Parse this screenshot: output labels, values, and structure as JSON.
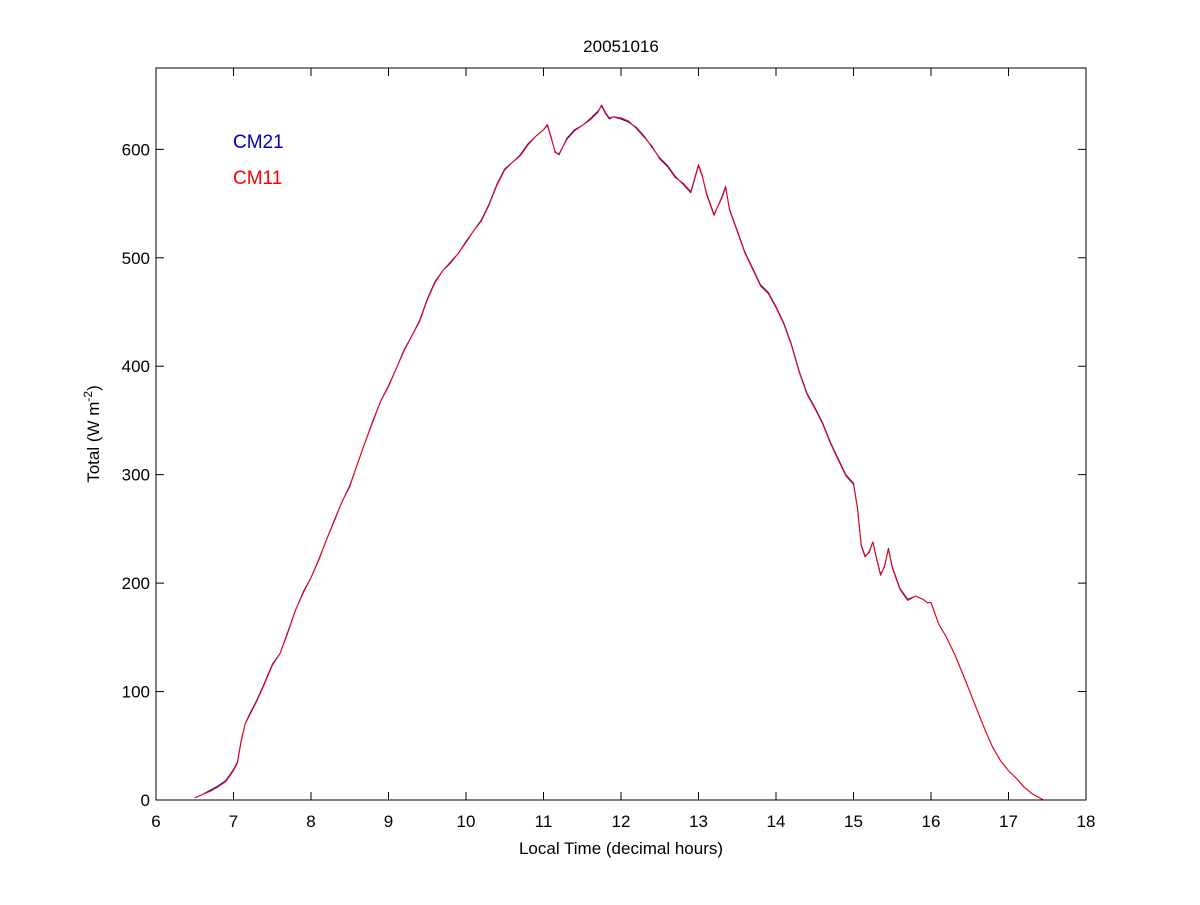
{
  "chart_data": {
    "type": "line",
    "title": "20051016",
    "xlabel": "Local Time (decimal hours)",
    "ylabel": {
      "prefix": "Total (W m",
      "exponent": "-2",
      "suffix": ")"
    },
    "xlim": [
      6,
      18
    ],
    "ylim": [
      0,
      675
    ],
    "xticks": [
      6,
      7,
      8,
      9,
      10,
      11,
      12,
      13,
      14,
      15,
      16,
      17,
      18
    ],
    "yticks": [
      0,
      100,
      200,
      300,
      400,
      500,
      600
    ],
    "grid": false,
    "legend_position": "top-left",
    "series": [
      {
        "name": "CM21",
        "color": "#0000c0",
        "x": [
          6.5,
          6.6,
          6.7,
          6.8,
          6.9,
          7.0,
          7.05,
          7.1,
          7.15,
          7.2,
          7.3,
          7.4,
          7.5,
          7.6,
          7.7,
          7.8,
          7.9,
          8.0,
          8.1,
          8.2,
          8.3,
          8.4,
          8.5,
          8.6,
          8.7,
          8.8,
          8.9,
          9.0,
          9.1,
          9.2,
          9.3,
          9.4,
          9.5,
          9.6,
          9.7,
          9.8,
          9.9,
          10.0,
          10.1,
          10.2,
          10.3,
          10.4,
          10.5,
          10.6,
          10.7,
          10.8,
          10.9,
          11.0,
          11.05,
          11.1,
          11.15,
          11.2,
          11.3,
          11.4,
          11.5,
          11.6,
          11.7,
          11.75,
          11.8,
          11.85,
          11.9,
          12.0,
          12.1,
          12.2,
          12.3,
          12.4,
          12.5,
          12.6,
          12.7,
          12.8,
          12.9,
          13.0,
          13.05,
          13.1,
          13.2,
          13.3,
          13.35,
          13.4,
          13.5,
          13.6,
          13.7,
          13.8,
          13.9,
          14.0,
          14.1,
          14.2,
          14.3,
          14.4,
          14.5,
          14.6,
          14.7,
          14.8,
          14.9,
          15.0,
          15.05,
          15.1,
          15.15,
          15.2,
          15.25,
          15.3,
          15.35,
          15.4,
          15.45,
          15.5,
          15.55,
          15.6,
          15.7,
          15.8,
          15.9,
          15.95,
          16.0,
          16.1,
          16.2,
          16.3,
          16.4,
          16.5,
          16.6,
          16.7,
          16.8,
          16.9,
          17.0,
          17.1,
          17.2,
          17.3,
          17.4,
          17.45
        ],
        "y": [
          2,
          5,
          9,
          13,
          18,
          28,
          35,
          55,
          70,
          78,
          92,
          108,
          125,
          135,
          155,
          175,
          192,
          205,
          222,
          240,
          258,
          275,
          290,
          310,
          330,
          350,
          368,
          382,
          398,
          415,
          428,
          442,
          462,
          478,
          488,
          496,
          504,
          515,
          525,
          535,
          550,
          568,
          582,
          588,
          595,
          605,
          612,
          618,
          622,
          610,
          598,
          595,
          610,
          618,
          622,
          628,
          635,
          640,
          633,
          628,
          630,
          628,
          625,
          620,
          612,
          602,
          592,
          585,
          575,
          568,
          560,
          585,
          575,
          560,
          540,
          555,
          565,
          545,
          525,
          505,
          490,
          475,
          468,
          455,
          440,
          420,
          395,
          375,
          362,
          348,
          330,
          315,
          300,
          292,
          270,
          235,
          225,
          228,
          238,
          222,
          208,
          215,
          232,
          215,
          205,
          195,
          185,
          188,
          185,
          182,
          182,
          162,
          150,
          135,
          118,
          100,
          82,
          64,
          48,
          36,
          27,
          20,
          12,
          6,
          2,
          0
        ]
      },
      {
        "name": "CM11",
        "color": "#ff0000",
        "x": [
          6.5,
          6.6,
          6.7,
          6.8,
          6.9,
          7.0,
          7.05,
          7.1,
          7.15,
          7.2,
          7.3,
          7.4,
          7.5,
          7.6,
          7.7,
          7.8,
          7.9,
          8.0,
          8.1,
          8.2,
          8.3,
          8.4,
          8.5,
          8.6,
          8.7,
          8.8,
          8.9,
          9.0,
          9.1,
          9.2,
          9.3,
          9.4,
          9.5,
          9.6,
          9.7,
          9.8,
          9.9,
          10.0,
          10.1,
          10.2,
          10.3,
          10.4,
          10.5,
          10.6,
          10.7,
          10.8,
          10.9,
          11.0,
          11.05,
          11.1,
          11.15,
          11.2,
          11.3,
          11.4,
          11.5,
          11.6,
          11.7,
          11.75,
          11.8,
          11.85,
          11.9,
          12.0,
          12.1,
          12.2,
          12.3,
          12.4,
          12.5,
          12.6,
          12.7,
          12.8,
          12.9,
          13.0,
          13.05,
          13.1,
          13.2,
          13.3,
          13.35,
          13.4,
          13.5,
          13.6,
          13.7,
          13.8,
          13.9,
          14.0,
          14.1,
          14.2,
          14.3,
          14.4,
          14.5,
          14.6,
          14.7,
          14.8,
          14.9,
          15.0,
          15.05,
          15.1,
          15.15,
          15.2,
          15.25,
          15.3,
          15.35,
          15.4,
          15.45,
          15.5,
          15.55,
          15.6,
          15.7,
          15.8,
          15.9,
          15.95,
          16.0,
          16.1,
          16.2,
          16.3,
          16.4,
          16.5,
          16.6,
          16.7,
          16.8,
          16.9,
          17.0,
          17.1,
          17.2,
          17.3,
          17.4,
          17.45
        ],
        "y": [
          2,
          5,
          8,
          12,
          17,
          27,
          34,
          54,
          70,
          77,
          91,
          107,
          124,
          135,
          154,
          175,
          191,
          205,
          221,
          240,
          257,
          275,
          289,
          310,
          330,
          349,
          368,
          381,
          398,
          414,
          428,
          441,
          461,
          477,
          488,
          495,
          504,
          514,
          525,
          534,
          549,
          567,
          581,
          588,
          594,
          604,
          612,
          618,
          623,
          611,
          597,
          596,
          609,
          617,
          622,
          627,
          634,
          641,
          634,
          629,
          630,
          629,
          626,
          619,
          611,
          603,
          591,
          584,
          574,
          569,
          561,
          586,
          576,
          559,
          539,
          556,
          566,
          544,
          524,
          504,
          489,
          474,
          467,
          454,
          439,
          419,
          394,
          374,
          361,
          347,
          329,
          314,
          299,
          291,
          269,
          234,
          224,
          229,
          238,
          221,
          207,
          216,
          231,
          214,
          204,
          194,
          184,
          188,
          185,
          182,
          182,
          162,
          150,
          135,
          118,
          100,
          82,
          64,
          48,
          36,
          27,
          20,
          12,
          6,
          2,
          0
        ]
      }
    ]
  }
}
